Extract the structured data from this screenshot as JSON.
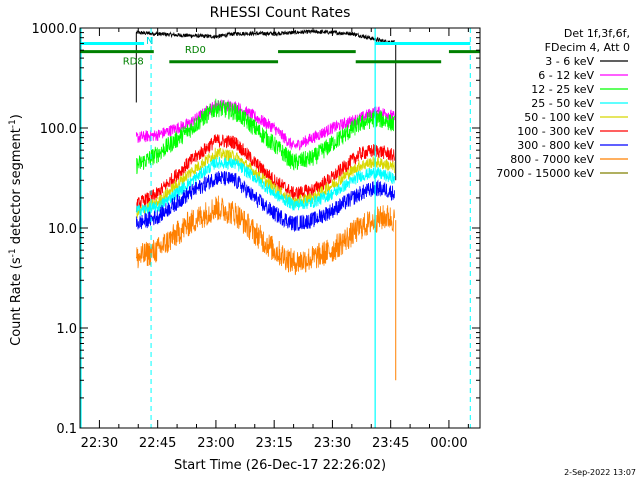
{
  "chart_data": {
    "type": "line",
    "title": "RHESSI Count Rates",
    "xlabel": "Start Time (26-Dec-17 22:26:02)",
    "ylabel_main": "Count Rate (s",
    "ylabel_sup": "-1",
    "ylabel_tail": " detector segment",
    "ylabel_sup2": "-1",
    "ylabel_close": ")",
    "yscale": "log",
    "ylim": [
      0.1,
      1000
    ],
    "xlim_minutes": [
      -35,
      68
    ],
    "x_ticks": [
      {
        "m": -30,
        "label": "22:30"
      },
      {
        "m": -15,
        "label": "22:45"
      },
      {
        "m": 0,
        "label": "23:00"
      },
      {
        "m": 15,
        "label": "23:15"
      },
      {
        "m": 30,
        "label": "23:30"
      },
      {
        "m": 45,
        "label": "23:45"
      },
      {
        "m": 60,
        "label": "00:00"
      }
    ],
    "y_ticks": [
      {
        "v": 0.1,
        "label": "0.1"
      },
      {
        "v": 1,
        "label": "1.0"
      },
      {
        "v": 10,
        "label": "10.0"
      },
      {
        "v": 100,
        "label": "100.0"
      },
      {
        "v": 1000,
        "label": "1000.0"
      }
    ],
    "legend": {
      "position": "top-right",
      "header": [
        "Det 1f,3f,6f,",
        "FDecim 4, Att 0"
      ],
      "entries": [
        {
          "label": "3 - 6 keV",
          "color": "#000000"
        },
        {
          "label": "6 - 12 keV",
          "color": "#ff00ff"
        },
        {
          "label": "12 - 25 keV",
          "color": "#00ff00"
        },
        {
          "label": "25 - 50 keV",
          "color": "#00ffff"
        },
        {
          "label": "50 - 100 keV",
          "color": "#d8d800"
        },
        {
          "label": "100 - 300 keV",
          "color": "#ff0000"
        },
        {
          "label": "300 - 800 keV",
          "color": "#0000ff"
        },
        {
          "label": "800 - 7000 keV",
          "color": "#ff8000"
        },
        {
          "label": "7000 - 15000 keV",
          "color": "#808000"
        }
      ]
    },
    "series": [
      {
        "name": "3 - 6 keV",
        "color": "#000000",
        "noise": 0.02,
        "points": [
          [
            -20.5,
            900
          ],
          [
            -10,
            850
          ],
          [
            0,
            820
          ],
          [
            5,
            880
          ],
          [
            15,
            880
          ],
          [
            25,
            920
          ],
          [
            35,
            880
          ],
          [
            43,
            740
          ],
          [
            46,
            720
          ]
        ]
      },
      {
        "name": "6 - 12 keV",
        "color": "#ff00ff",
        "noise": 0.06,
        "points": [
          [
            -20.5,
            80
          ],
          [
            -15,
            85
          ],
          [
            -7,
            110
          ],
          [
            0,
            170
          ],
          [
            5,
            165
          ],
          [
            10,
            130
          ],
          [
            15,
            100
          ],
          [
            20,
            65
          ],
          [
            25,
            80
          ],
          [
            30,
            100
          ],
          [
            37,
            125
          ],
          [
            41,
            145
          ],
          [
            44,
            140
          ],
          [
            46,
            128
          ]
        ]
      },
      {
        "name": "12 - 25 keV",
        "color": "#00ff00",
        "noise": 0.09,
        "points": [
          [
            -20.5,
            42
          ],
          [
            -15,
            55
          ],
          [
            -7,
            95
          ],
          [
            0,
            160
          ],
          [
            5,
            145
          ],
          [
            10,
            100
          ],
          [
            15,
            68
          ],
          [
            20,
            45
          ],
          [
            25,
            50
          ],
          [
            30,
            70
          ],
          [
            37,
            110
          ],
          [
            41,
            125
          ],
          [
            44,
            118
          ],
          [
            46,
            108
          ]
        ]
      },
      {
        "name": "100 - 300 keV",
        "color": "#ff0000",
        "noise": 0.07,
        "points": [
          [
            -20.5,
            17
          ],
          [
            -15,
            22
          ],
          [
            -7,
            45
          ],
          [
            0,
            75
          ],
          [
            5,
            72
          ],
          [
            10,
            45
          ],
          [
            15,
            30
          ],
          [
            20,
            22
          ],
          [
            25,
            24
          ],
          [
            30,
            32
          ],
          [
            37,
            55
          ],
          [
            41,
            60
          ],
          [
            44,
            56
          ],
          [
            46,
            52
          ]
        ]
      },
      {
        "name": "50 - 100 keV",
        "color": "#d8d800",
        "noise": 0.06,
        "points": [
          [
            -20.5,
            14
          ],
          [
            -15,
            18
          ],
          [
            -7,
            35
          ],
          [
            0,
            56
          ],
          [
            5,
            52
          ],
          [
            10,
            36
          ],
          [
            15,
            25
          ],
          [
            20,
            18
          ],
          [
            25,
            20
          ],
          [
            30,
            27
          ],
          [
            37,
            42
          ],
          [
            41,
            46
          ],
          [
            44,
            43
          ],
          [
            46,
            40
          ]
        ]
      },
      {
        "name": "25 - 50 keV",
        "color": "#00ffff",
        "noise": 0.06,
        "points": [
          [
            -20.5,
            15
          ],
          [
            -15,
            16
          ],
          [
            -7,
            28
          ],
          [
            0,
            45
          ],
          [
            5,
            44
          ],
          [
            10,
            32
          ],
          [
            15,
            22
          ],
          [
            20,
            17
          ],
          [
            25,
            18
          ],
          [
            30,
            22
          ],
          [
            37,
            33
          ],
          [
            41,
            36
          ],
          [
            44,
            33
          ],
          [
            46,
            31
          ]
        ]
      },
      {
        "name": "300 - 800 keV",
        "color": "#0000ff",
        "noise": 0.08,
        "points": [
          [
            -20.5,
            11
          ],
          [
            -15,
            13
          ],
          [
            -7,
            22
          ],
          [
            0,
            32
          ],
          [
            5,
            30
          ],
          [
            10,
            20
          ],
          [
            15,
            14
          ],
          [
            20,
            11
          ],
          [
            25,
            12
          ],
          [
            30,
            15
          ],
          [
            37,
            22
          ],
          [
            41,
            25
          ],
          [
            44,
            24
          ],
          [
            46,
            22
          ]
        ]
      },
      {
        "name": "800 - 7000 keV",
        "color": "#ff8000",
        "noise": 0.13,
        "points": [
          [
            -20.5,
            5
          ],
          [
            -15,
            6
          ],
          [
            -7,
            11
          ],
          [
            0,
            16
          ],
          [
            5,
            14
          ],
          [
            10,
            9
          ],
          [
            15,
            6
          ],
          [
            20,
            4.5
          ],
          [
            25,
            5
          ],
          [
            30,
            6
          ],
          [
            37,
            10
          ],
          [
            41,
            12
          ],
          [
            44,
            13
          ],
          [
            46,
            12
          ]
        ]
      }
    ],
    "black_spikes": [
      {
        "x": -20.5,
        "y1": 180,
        "y2": 900
      },
      {
        "x": 46.3,
        "y1": 30,
        "y2": 720
      }
    ],
    "orange_spike": {
      "x": 46.3,
      "y1": 0.3,
      "y2": 12
    },
    "cyan_solid_lines": [
      -35,
      41
    ],
    "cyan_dash_lines": [
      -16.7,
      65.5
    ],
    "cyan_segments": [
      {
        "x1": -35,
        "x2": -18.5,
        "y": 700
      },
      {
        "x1": 41,
        "x2": 65.5,
        "y": 700
      }
    ],
    "green_upper": [
      {
        "x1": -35,
        "x2": -16,
        "y": 580
      },
      {
        "x1": 16,
        "x2": 36,
        "y": 580
      },
      {
        "x1": 60,
        "x2": 68,
        "y": 580
      }
    ],
    "green_lower": [
      {
        "x1": -12,
        "x2": 16,
        "y": 460
      },
      {
        "x1": 36,
        "x2": 58,
        "y": 460
      }
    ],
    "annotations": [
      {
        "text": "N",
        "color": "#00dddd",
        "x": -18,
        "y": 690
      },
      {
        "text": "RD0",
        "color": "#008000",
        "x": -8,
        "y": 560
      },
      {
        "text": "RD8",
        "color": "#008000",
        "x": -24,
        "y": 430
      }
    ],
    "footer_date": "2-Sep-2022 13:07"
  }
}
